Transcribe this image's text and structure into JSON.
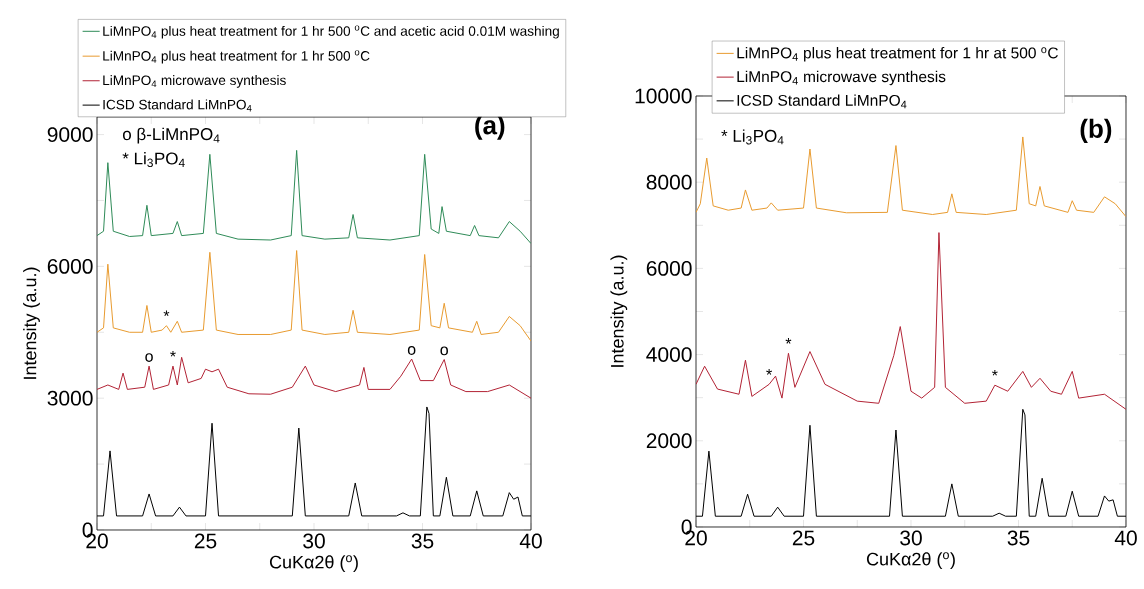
{
  "chart_data": [
    {
      "type": "line",
      "title": "(a)",
      "xlabel": "CuKα2θ ($^{o}$)",
      "ylabel": "Intensity (a.u.)",
      "xlim": [
        20,
        40
      ],
      "ylim": [
        0,
        9400
      ],
      "xticks": [
        20,
        {
          "value": 22.5,
          "label": null
        },
        25,
        {
          "value": 27.5,
          "label": null
        },
        30,
        {
          "value": 32.5,
          "label": null
        },
        35,
        {
          "value": 37.5,
          "label": null
        },
        40
      ],
      "yticks": [
        0,
        {
          "value": 1500,
          "label": null
        },
        3000,
        {
          "value": 4500,
          "label": null
        },
        6000,
        {
          "value": 7500,
          "label": null
        },
        9000
      ],
      "legend": "top",
      "annotations": [
        "o β-LiMnPO$_{4}$",
        "* Li$_{3}$PO$_{4}$",
        {
          "text": "*",
          "x": 23.2,
          "y": 4650
        },
        {
          "text": "o",
          "x": 22.4,
          "y": 3730
        },
        {
          "text": "*",
          "x": 23.5,
          "y": 3730
        },
        {
          "text": "o",
          "x": 34.5,
          "y": 3890
        },
        {
          "text": "o",
          "x": 36.0,
          "y": 3880
        }
      ],
      "series": [
        {
          "name": "LiMnPO$_{4}$ plus heat treatment for 1 hr 500 $^{o}$C and acetic acid 0.01M washing",
          "color": "#2e8b57",
          "x": [
            20,
            20.3,
            20.5,
            20.75,
            21.5,
            22.1,
            22.3,
            22.5,
            23.5,
            23.7,
            23.9,
            24.9,
            25.2,
            25.5,
            26.5,
            28,
            28.95,
            29.2,
            29.45,
            30.5,
            31.6,
            31.8,
            32.0,
            33.5,
            34.85,
            35.1,
            35.4,
            35.75,
            35.9,
            36.1,
            37.2,
            37.4,
            37.6,
            38.5,
            39.0,
            39.5,
            40
          ],
          "values": [
            6700,
            6800,
            8360,
            6800,
            6680,
            6700,
            7390,
            6700,
            6750,
            7020,
            6700,
            6750,
            8550,
            6750,
            6620,
            6600,
            6700,
            8640,
            6700,
            6620,
            6650,
            7180,
            6650,
            6600,
            6700,
            8550,
            6850,
            6750,
            7360,
            6800,
            6700,
            6930,
            6700,
            6650,
            7020,
            6800,
            6520
          ]
        },
        {
          "name": "LiMnPO$_{4}$ plus heat treatment for 1 hr 500 $^{o}$C",
          "color": "#e89b2f",
          "x": [
            20,
            20.3,
            20.5,
            20.75,
            21.5,
            22.1,
            22.3,
            22.5,
            23.0,
            23.2,
            23.4,
            23.7,
            23.9,
            24.9,
            25.2,
            25.5,
            26.5,
            28,
            28.95,
            29.2,
            29.45,
            30.5,
            31.6,
            31.8,
            32.0,
            33.5,
            34.85,
            35.1,
            35.4,
            35.8,
            36.0,
            36.2,
            37.3,
            37.5,
            37.7,
            38.5,
            39.0,
            39.5,
            40
          ],
          "values": [
            4500,
            4600,
            6050,
            4600,
            4500,
            4500,
            5110,
            4500,
            4550,
            4650,
            4500,
            4750,
            4500,
            4550,
            6320,
            4550,
            4450,
            4450,
            4550,
            6360,
            4550,
            4450,
            4500,
            5000,
            4500,
            4450,
            4550,
            6270,
            4650,
            4600,
            5160,
            4600,
            4500,
            4750,
            4450,
            4500,
            4860,
            4650,
            4300
          ]
        },
        {
          "name": "LiMnPO$_{4}$ microwave synthesis",
          "color": "#b22234",
          "x": [
            20,
            20.5,
            21.0,
            21.2,
            21.4,
            22.2,
            22.4,
            22.6,
            23.3,
            23.5,
            23.7,
            23.9,
            24.2,
            24.8,
            25.0,
            25.3,
            25.6,
            26.0,
            27,
            28,
            29.0,
            29.6,
            30.0,
            31,
            32.1,
            32.3,
            32.5,
            33.5,
            34.0,
            34.5,
            34.9,
            35.5,
            36.0,
            36.3,
            37,
            38,
            39.0,
            39.5,
            40
          ],
          "values": [
            3200,
            3300,
            3200,
            3570,
            3200,
            3250,
            3730,
            3200,
            3300,
            3730,
            3300,
            3930,
            3350,
            3450,
            3660,
            3600,
            3660,
            3250,
            3100,
            3090,
            3250,
            3730,
            3300,
            3150,
            3300,
            3700,
            3200,
            3200,
            3500,
            3890,
            3400,
            3400,
            3880,
            3300,
            3150,
            3150,
            3300,
            3150,
            3000
          ]
        },
        {
          "name": "ICSD Standard LiMnPO$_{4}$",
          "color": "#000000",
          "x": [
            20,
            20.3,
            20.6,
            20.9,
            22.1,
            22.4,
            22.7,
            23.5,
            23.8,
            24.1,
            25.0,
            25.3,
            25.6,
            29.0,
            29.3,
            29.6,
            31.6,
            31.9,
            32.2,
            33.8,
            34.1,
            34.4,
            34.9,
            35.2,
            35.3,
            35.5,
            35.8,
            36.1,
            36.4,
            37.2,
            37.5,
            37.8,
            38.7,
            39.0,
            39.2,
            39.4,
            39.6,
            40
          ],
          "values": [
            320,
            320,
            1800,
            320,
            320,
            820,
            320,
            320,
            520,
            320,
            320,
            2430,
            320,
            320,
            2320,
            320,
            320,
            1070,
            320,
            320,
            390,
            320,
            320,
            2800,
            2650,
            320,
            320,
            1200,
            320,
            320,
            890,
            320,
            320,
            850,
            700,
            750,
            320,
            320
          ]
        }
      ]
    },
    {
      "type": "line",
      "title": "(b)",
      "xlabel": "CuKα2θ ($^{o}$)",
      "ylabel": "Intensity (a.u.)",
      "xlim": [
        20,
        40
      ],
      "ylim": [
        0,
        10000
      ],
      "xticks": [
        20,
        {
          "value": 22.5,
          "label": null
        },
        25,
        {
          "value": 27.5,
          "label": null
        },
        30,
        {
          "value": 32.5,
          "label": null
        },
        35,
        {
          "value": 37.5,
          "label": null
        },
        40
      ],
      "yticks": [
        0,
        {
          "value": 1000,
          "label": null
        },
        2000,
        {
          "value": 3000,
          "label": null
        },
        4000,
        {
          "value": 5000,
          "label": null
        },
        6000,
        {
          "value": 7000,
          "label": null
        },
        8000,
        {
          "value": 9000,
          "label": null
        },
        10000
      ],
      "legend": "top",
      "annotations": [
        "* Li$_{3}$PO$_{4}$",
        {
          "text": "*",
          "x": 23.4,
          "y": 3310
        },
        {
          "text": "*",
          "x": 24.3,
          "y": 4030
        },
        {
          "text": "*",
          "x": 33.9,
          "y": 3290
        }
      ],
      "series": [
        {
          "name": "LiMnPO$_{4}$ plus heat treatment for 1 hr at 500 $^{o}$C",
          "color": "#e89b2f",
          "x": [
            20,
            20.2,
            20.5,
            20.8,
            21.5,
            22.1,
            22.3,
            22.6,
            23.3,
            23.5,
            23.8,
            25.0,
            25.3,
            25.6,
            27,
            28.9,
            29.3,
            29.6,
            31,
            31.7,
            31.9,
            32.1,
            33.5,
            34.9,
            35.2,
            35.5,
            35.8,
            36.0,
            36.2,
            37.3,
            37.5,
            37.7,
            38.5,
            39.0,
            39.5,
            40
          ],
          "values": [
            7300,
            7500,
            8560,
            7450,
            7350,
            7400,
            7820,
            7350,
            7400,
            7520,
            7350,
            7400,
            8770,
            7400,
            7290,
            7300,
            8850,
            7350,
            7250,
            7300,
            7730,
            7300,
            7250,
            7350,
            9050,
            7500,
            7450,
            7900,
            7450,
            7300,
            7570,
            7350,
            7300,
            7660,
            7500,
            7200
          ]
        },
        {
          "name": "LiMnPO$_{4}$ microwave synthesis",
          "color": "#b22234",
          "x": [
            20,
            20.4,
            21,
            22,
            22.3,
            22.6,
            23.4,
            23.7,
            24.0,
            24.3,
            24.6,
            25.3,
            26,
            27.5,
            28.5,
            29.2,
            29.5,
            30,
            30.5,
            31.1,
            31.3,
            31.6,
            32.5,
            33.5,
            33.9,
            34.5,
            35.2,
            35.6,
            36.0,
            36.5,
            37.0,
            37.5,
            37.8,
            39.0,
            40
          ],
          "values": [
            3310,
            3730,
            3200,
            3080,
            3870,
            3030,
            3310,
            3500,
            2990,
            4030,
            3240,
            4070,
            3310,
            2920,
            2870,
            3980,
            4650,
            3150,
            2990,
            3240,
            6830,
            3240,
            2870,
            2920,
            3290,
            3150,
            3610,
            3240,
            3450,
            3150,
            3080,
            3610,
            2990,
            3080,
            2730
          ]
        },
        {
          "name": "ICSD Standard LiMnPO$_{4}$",
          "color": "#000000",
          "x": [
            20,
            20.3,
            20.6,
            20.9,
            22.1,
            22.4,
            22.7,
            23.5,
            23.8,
            24.1,
            25.0,
            25.3,
            25.6,
            29.0,
            29.3,
            29.6,
            31.6,
            31.9,
            32.2,
            33.8,
            34.1,
            34.4,
            34.9,
            35.2,
            35.3,
            35.5,
            35.8,
            36.1,
            36.4,
            37.2,
            37.5,
            37.8,
            38.7,
            39.0,
            39.2,
            39.4,
            39.6,
            40
          ],
          "values": [
            250,
            250,
            1760,
            250,
            250,
            760,
            250,
            250,
            460,
            250,
            250,
            2360,
            250,
            250,
            2250,
            250,
            250,
            1000,
            250,
            250,
            320,
            250,
            250,
            2730,
            2600,
            250,
            250,
            1130,
            250,
            250,
            830,
            250,
            250,
            720,
            600,
            630,
            250,
            250
          ]
        }
      ]
    }
  ]
}
